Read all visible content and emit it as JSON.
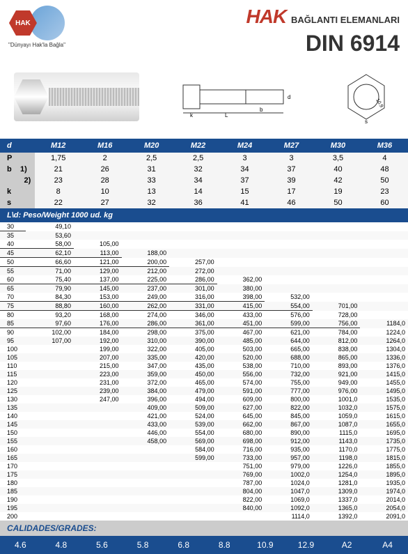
{
  "header": {
    "logo_text": "HAK",
    "tagline": "\"Dünyayı Hak'la Bağla\"",
    "brand": "HAK",
    "brand_sub": "BAĞLANTI ELEMANLARI",
    "din": "DIN 6914"
  },
  "spec": {
    "cols": [
      "M12",
      "M16",
      "M20",
      "M22",
      "M24",
      "M27",
      "M30",
      "M36"
    ],
    "rows": [
      {
        "label": "P",
        "vals": [
          "1,75",
          "2",
          "2,5",
          "2,5",
          "3",
          "3",
          "3,5",
          "4"
        ]
      },
      {
        "label": "b",
        "sub": "1)",
        "vals": [
          "21",
          "26",
          "31",
          "32",
          "34",
          "37",
          "40",
          "48"
        ]
      },
      {
        "label": "",
        "sub": "2)",
        "vals": [
          "23",
          "28",
          "33",
          "34",
          "37",
          "39",
          "42",
          "50"
        ]
      },
      {
        "label": "k",
        "vals": [
          "8",
          "10",
          "13",
          "14",
          "15",
          "17",
          "19",
          "23"
        ]
      },
      {
        "label": "s",
        "vals": [
          "22",
          "27",
          "32",
          "36",
          "41",
          "46",
          "50",
          "60"
        ]
      }
    ]
  },
  "weight": {
    "header": "L\\d: Peso/Weight 1000 ud. kg",
    "rows": [
      [
        "30",
        "49,10",
        "",
        "",
        "",
        "",
        "",
        "",
        ""
      ],
      [
        "35",
        "53,60",
        "",
        "",
        "",
        "",
        "",
        "",
        ""
      ],
      [
        "40",
        "58,00",
        "105,00",
        "",
        "",
        "",
        "",
        "",
        ""
      ],
      [
        "45",
        "62,10",
        "113,00",
        "188,00",
        "",
        "",
        "",
        "",
        ""
      ],
      [
        "50",
        "66,60",
        "121,00",
        "200,00",
        "257,00",
        "",
        "",
        "",
        ""
      ],
      [
        "55",
        "71,00",
        "129,00",
        "212,00",
        "272,00",
        "",
        "",
        "",
        ""
      ],
      [
        "60",
        "75,40",
        "137,00",
        "225,00",
        "286,00",
        "362,00",
        "",
        "",
        ""
      ],
      [
        "65",
        "79,90",
        "145,00",
        "237,00",
        "301,00",
        "380,00",
        "",
        "",
        ""
      ],
      [
        "70",
        "84,30",
        "153,00",
        "249,00",
        "316,00",
        "398,00",
        "532,00",
        "",
        ""
      ],
      [
        "75",
        "88,80",
        "160,00",
        "262,00",
        "331,00",
        "415,00",
        "554,00",
        "701,00",
        ""
      ],
      [
        "80",
        "93,20",
        "168,00",
        "274,00",
        "346,00",
        "433,00",
        "576,00",
        "728,00",
        ""
      ],
      [
        "85",
        "97,60",
        "176,00",
        "286,00",
        "361,00",
        "451,00",
        "599,00",
        "756,00",
        "1184,0"
      ],
      [
        "90",
        "102,00",
        "184,00",
        "298,00",
        "375,00",
        "467,00",
        "621,00",
        "784,00",
        "1224,0"
      ],
      [
        "95",
        "107,00",
        "192,00",
        "310,00",
        "390,00",
        "485,00",
        "644,00",
        "812,00",
        "1264,0"
      ],
      [
        "100",
        "",
        "199,00",
        "322,00",
        "405,00",
        "503,00",
        "665,00",
        "838,00",
        "1304,0"
      ],
      [
        "105",
        "",
        "207,00",
        "335,00",
        "420,00",
        "520,00",
        "688,00",
        "865,00",
        "1336,0"
      ],
      [
        "110",
        "",
        "215,00",
        "347,00",
        "435,00",
        "538,00",
        "710,00",
        "893,00",
        "1376,0"
      ],
      [
        "115",
        "",
        "223,00",
        "359,00",
        "450,00",
        "556,00",
        "732,00",
        "921,00",
        "1415,0"
      ],
      [
        "120",
        "",
        "231,00",
        "372,00",
        "465,00",
        "574,00",
        "755,00",
        "949,00",
        "1455,0"
      ],
      [
        "125",
        "",
        "239,00",
        "384,00",
        "479,00",
        "591,00",
        "777,00",
        "976,00",
        "1495,0"
      ],
      [
        "130",
        "",
        "247,00",
        "396,00",
        "494,00",
        "609,00",
        "800,00",
        "1001,0",
        "1535,0"
      ],
      [
        "135",
        "",
        "",
        "409,00",
        "509,00",
        "627,00",
        "822,00",
        "1032,0",
        "1575,0"
      ],
      [
        "140",
        "",
        "",
        "421,00",
        "524,00",
        "645,00",
        "845,00",
        "1059,0",
        "1615,0"
      ],
      [
        "145",
        "",
        "",
        "433,00",
        "539,00",
        "662,00",
        "867,00",
        "1087,0",
        "1655,0"
      ],
      [
        "150",
        "",
        "",
        "446,00",
        "554,00",
        "680,00",
        "890,00",
        "1115,0",
        "1695,0"
      ],
      [
        "155",
        "",
        "",
        "458,00",
        "569,00",
        "698,00",
        "912,00",
        "1143,0",
        "1735,0"
      ],
      [
        "160",
        "",
        "",
        "",
        "584,00",
        "716,00",
        "935,00",
        "1170,0",
        "1775,0"
      ],
      [
        "165",
        "",
        "",
        "",
        "599,00",
        "733,00",
        "957,00",
        "1198,0",
        "1815,0"
      ],
      [
        "170",
        "",
        "",
        "",
        "",
        "751,00",
        "979,00",
        "1226,0",
        "1855,0"
      ],
      [
        "175",
        "",
        "",
        "",
        "",
        "769,00",
        "1002,0",
        "1254,0",
        "1895,0"
      ],
      [
        "180",
        "",
        "",
        "",
        "",
        "787,00",
        "1024,0",
        "1281,0",
        "1935,0"
      ],
      [
        "185",
        "",
        "",
        "",
        "",
        "804,00",
        "1047,0",
        "1309,0",
        "1974,0"
      ],
      [
        "190",
        "",
        "",
        "",
        "",
        "822,00",
        "1069,0",
        "1337,0",
        "2014,0"
      ],
      [
        "195",
        "",
        "",
        "",
        "",
        "840,00",
        "1092,0",
        "1365,0",
        "2054,0"
      ],
      [
        "200",
        "",
        "",
        "",
        "",
        "",
        "1114,0",
        "1392,0",
        "2091,0"
      ]
    ]
  },
  "grades": {
    "label": "CALIDADES/GRADES:",
    "items": [
      "4.6",
      "4.8",
      "5.6",
      "5.8",
      "6.8",
      "8.8",
      "10.9",
      "12.9",
      "A2",
      "A4"
    ]
  },
  "colors": {
    "primary": "#1a4d8f",
    "accent": "#c0392b"
  }
}
